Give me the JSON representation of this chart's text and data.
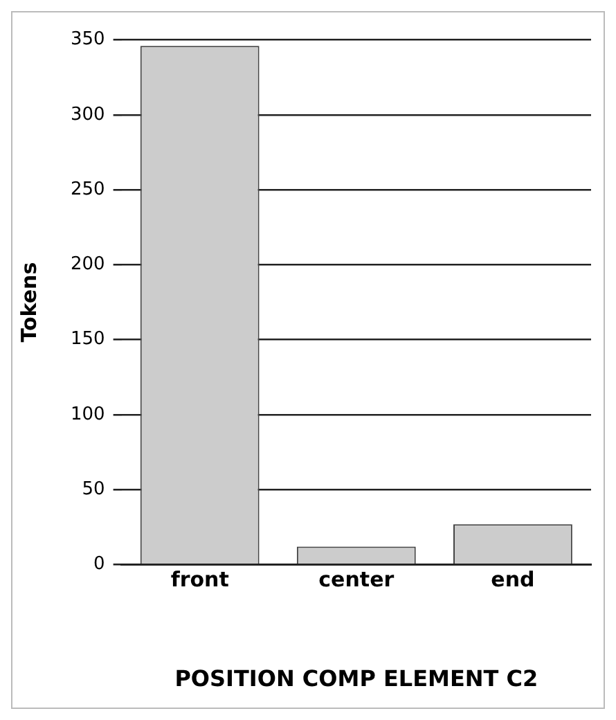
{
  "chart_data": {
    "type": "bar",
    "categories": [
      "front",
      "center",
      "end"
    ],
    "values": [
      346,
      12,
      27
    ],
    "color": "#cccccc",
    "ylim": [
      0,
      350
    ],
    "yticks": [
      0,
      50,
      100,
      150,
      200,
      250,
      300,
      350
    ],
    "grid": "y",
    "ylabel": "Tokens",
    "xlabel": "POSITION COMP ELEMENT C2"
  }
}
